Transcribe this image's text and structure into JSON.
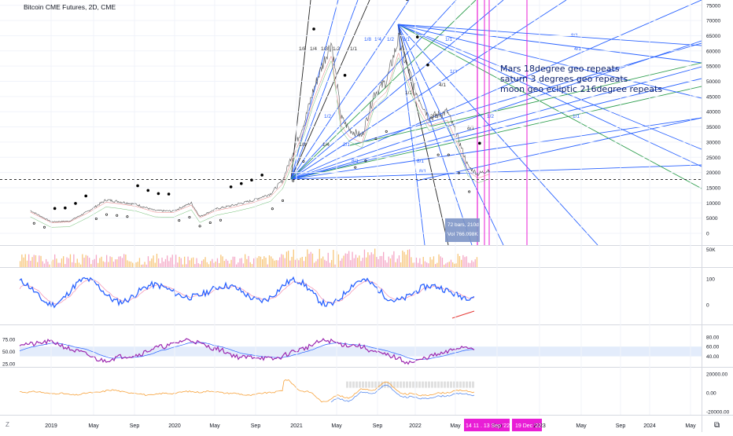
{
  "header": {
    "title": "Bitcoin CME Futures, 2D, CME"
  },
  "annotation": {
    "lines": [
      "Mars 18degree geo repeats",
      "saturn 3 degrees geo repeats",
      "moon geo ecliptic 216degree repeats"
    ]
  },
  "tooltip": {
    "bars": "72 bars, 210d",
    "volume": "Vol 766.098K"
  },
  "time_axis": {
    "labels": [
      "2019",
      "May",
      "Sep",
      "2020",
      "May",
      "Sep",
      "2021",
      "May",
      "Sep",
      "2022",
      "May",
      "Sep",
      "2023",
      "May",
      "Sep",
      "2024",
      "May"
    ],
    "highlight_1": "14  11 . 13 Sep '22",
    "highlight_2": "19 Dec '22",
    "z_label": "Z"
  },
  "colors": {
    "price_line": "#555555",
    "fan_blue": "#2962ff",
    "fan_green": "#2e9e4f",
    "fan_dark": "#222222",
    "magenta": "#e91ed6",
    "stoch_main": "#2962ff",
    "stoch_signal": "#f48fb1",
    "rsi": "#9c27b0",
    "rsi_band": "#e3ecfb",
    "bottom_osc": "#f7a23b"
  },
  "fan_labels": [
    "1/8",
    "1/4",
    "1/3",
    "1/2",
    "1/1",
    "1/8",
    "1/4",
    "1/2",
    "1/1",
    "1/1",
    "1/3",
    "1/2",
    "8/1",
    "4/1",
    "1/1",
    "1/2",
    "2/1",
    "8/1",
    "8/1",
    "8/1",
    "1/8",
    "1/4",
    "1/1",
    "2/1",
    "8/1",
    "4/1"
  ],
  "chart_data": [
    {
      "type": "line",
      "name": "price",
      "title": "Bitcoin CME Futures, 2D, CME",
      "y_ticks": [
        "75000",
        "70000",
        "65000",
        "60000",
        "55000",
        "50000",
        "45000",
        "40000",
        "35000",
        "30000",
        "25000",
        "20000",
        "15000",
        "10000",
        "5000",
        "0"
      ],
      "ylim": [
        0,
        76000
      ],
      "x": [
        2018.83,
        2019.0,
        2019.15,
        2019.3,
        2019.45,
        2019.55,
        2019.7,
        2019.85,
        2020.0,
        2020.15,
        2020.22,
        2020.35,
        2020.5,
        2020.65,
        2020.8,
        2020.9,
        2021.0,
        2021.08,
        2021.15,
        2021.25,
        2021.3,
        2021.38,
        2021.45,
        2021.55,
        2021.65,
        2021.75,
        2021.85,
        2021.9,
        2022.0,
        2022.1,
        2022.25,
        2022.35,
        2022.42,
        2022.5,
        2022.6
      ],
      "y": [
        7500,
        3800,
        4000,
        7200,
        11000,
        10500,
        9500,
        7500,
        7300,
        10000,
        5500,
        8000,
        9300,
        10800,
        13000,
        17500,
        28500,
        37000,
        47000,
        58000,
        63000,
        38000,
        34000,
        32000,
        46000,
        50000,
        64000,
        57000,
        46000,
        38000,
        40000,
        30000,
        22000,
        19500,
        21000
      ],
      "dot_overlay_label": "Parabolic SAR",
      "reference_line": 17700
    },
    {
      "type": "bar",
      "name": "volume",
      "y_ticks": [
        "50K"
      ]
    },
    {
      "type": "line",
      "name": "stochastic",
      "y_ticks": [
        "100",
        "0"
      ],
      "ylim": [
        -20,
        110
      ]
    },
    {
      "type": "line",
      "name": "rsi",
      "y_ticks": [
        "80.00",
        "60.00",
        "40.00"
      ],
      "left_ticks": [
        "75.00",
        "50.00",
        "25.00"
      ],
      "ylim": [
        20,
        90
      ],
      "band": [
        40,
        60
      ]
    },
    {
      "type": "line",
      "name": "oscillator",
      "y_ticks": [
        "20000.00",
        "0.00",
        "-20000.00"
      ],
      "ylim": [
        -22000,
        22000
      ]
    }
  ]
}
